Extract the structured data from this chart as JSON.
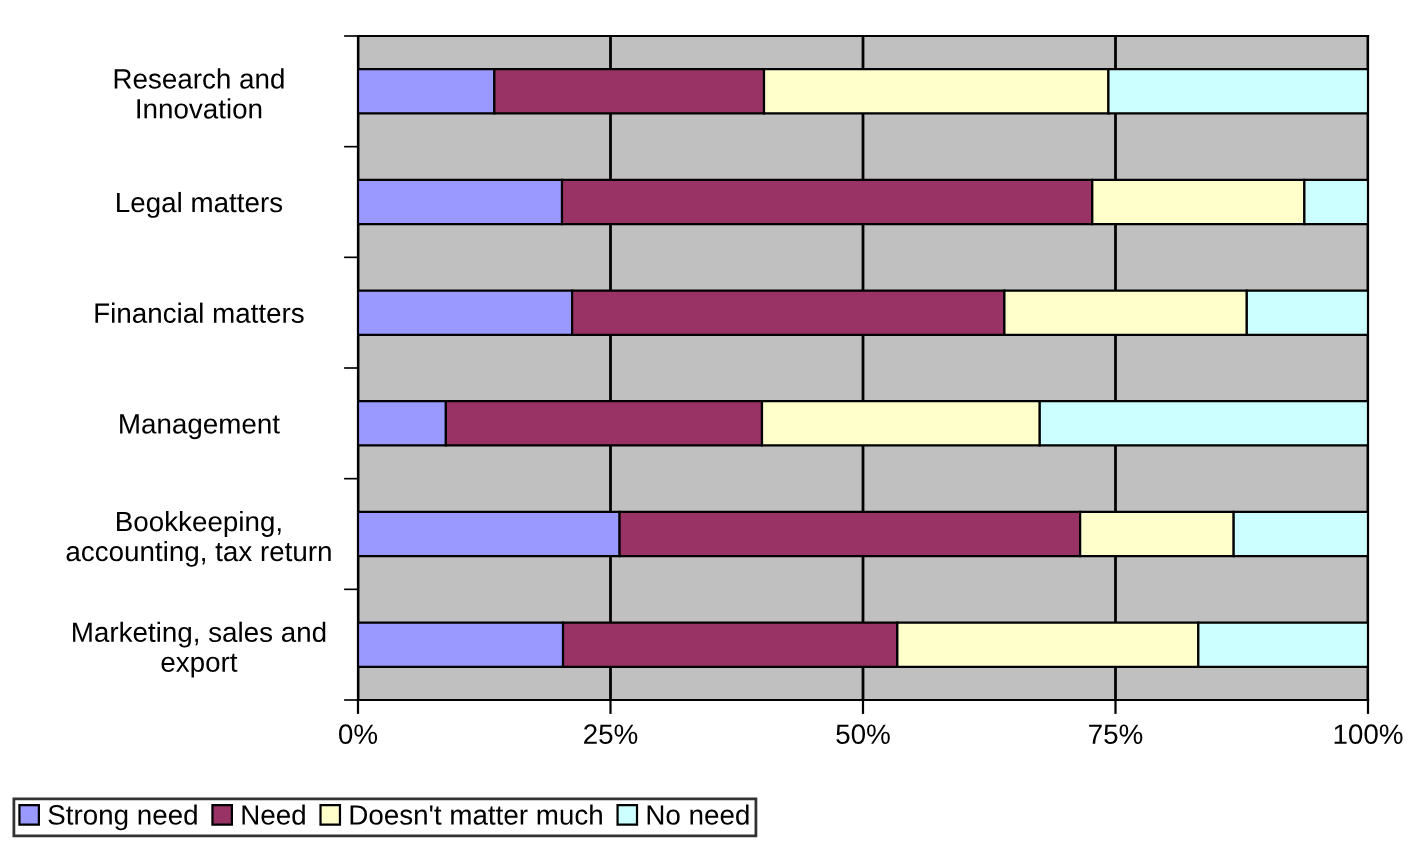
{
  "chart_data": {
    "type": "bar",
    "orientation": "horizontal",
    "stacked": true,
    "categories": [
      "Research and\nInnovation",
      "Legal matters",
      "Financial matters",
      "Management",
      "Bookkeeping,\naccounting, tax return",
      "Marketing, sales and\nexport"
    ],
    "series": [
      {
        "name": "Strong need",
        "color": "#9999ff",
        "values": [
          13.5,
          20.2,
          21.2,
          8.7,
          25.9,
          20.3
        ]
      },
      {
        "name": "Need",
        "color": "#993366",
        "values": [
          26.7,
          52.5,
          42.8,
          31.3,
          45.6,
          33.1
        ]
      },
      {
        "name": "Doesn't matter much",
        "color": "#ffffcc",
        "values": [
          34.1,
          21.0,
          24.0,
          27.5,
          15.2,
          29.8
        ]
      },
      {
        "name": "No need",
        "color": "#ccffff",
        "values": [
          25.7,
          6.3,
          12.0,
          32.5,
          13.3,
          16.8
        ]
      }
    ],
    "xlim": [
      0,
      100
    ],
    "xticks": [
      {
        "value": 0,
        "label": "0%"
      },
      {
        "value": 25,
        "label": "25%"
      },
      {
        "value": 50,
        "label": "50%"
      },
      {
        "value": 75,
        "label": "75%"
      },
      {
        "value": 100,
        "label": "100%"
      }
    ],
    "grid": "x",
    "legend": "bottom left"
  }
}
